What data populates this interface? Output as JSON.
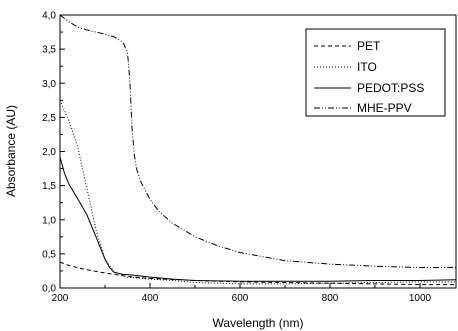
{
  "chart_data": {
    "type": "line",
    "title": "",
    "xlabel": "Wavelength (nm)",
    "ylabel": "Absorbance (AU)",
    "xlim": [
      200,
      1080
    ],
    "ylim": [
      0,
      4.0
    ],
    "xticks": [
      200,
      400,
      600,
      800,
      1000
    ],
    "xtick_labels": [
      "200",
      "400",
      "600",
      "800",
      "1000"
    ],
    "yticks": [
      0,
      0.5,
      1.0,
      1.5,
      2.0,
      2.5,
      3.0,
      3.5,
      4.0
    ],
    "ytick_labels": [
      "0,0",
      "0,5",
      "1,0",
      "1,5",
      "2,0",
      "2,5",
      "3,0",
      "3,5",
      "4,0"
    ],
    "grid": false,
    "legend_position": "top-right",
    "series": [
      {
        "name": "PET",
        "dash": "dashed",
        "x": [
          200,
          220,
          250,
          300,
          350,
          400,
          500,
          600,
          700,
          800,
          900,
          1000,
          1080
        ],
        "y": [
          0.38,
          0.33,
          0.28,
          0.22,
          0.17,
          0.14,
          0.11,
          0.09,
          0.08,
          0.07,
          0.06,
          0.05,
          0.05
        ]
      },
      {
        "name": "ITO",
        "dash": "dotted",
        "x": [
          200,
          220,
          240,
          260,
          280,
          300,
          320,
          350,
          400,
          450,
          500,
          600,
          700,
          800,
          900,
          1000,
          1080
        ],
        "y": [
          2.75,
          2.45,
          2.05,
          1.45,
          0.85,
          0.42,
          0.24,
          0.16,
          0.13,
          0.11,
          0.08,
          0.06,
          0.06,
          0.07,
          0.08,
          0.09,
          0.09
        ]
      },
      {
        "name": "PEDOT:PSS",
        "dash": "solid",
        "x": [
          200,
          210,
          220,
          240,
          260,
          280,
          300,
          310,
          320,
          340,
          360,
          400,
          450,
          500,
          600,
          700,
          800,
          900,
          1000,
          1080
        ],
        "y": [
          1.92,
          1.68,
          1.52,
          1.3,
          1.07,
          0.75,
          0.42,
          0.3,
          0.23,
          0.2,
          0.19,
          0.16,
          0.13,
          0.11,
          0.1,
          0.1,
          0.1,
          0.11,
          0.11,
          0.12
        ]
      },
      {
        "name": "MHE-PPV",
        "dash": "dashdotdot",
        "x": [
          200,
          220,
          240,
          260,
          280,
          300,
          320,
          340,
          350,
          355,
          360,
          365,
          370,
          380,
          400,
          420,
          450,
          500,
          550,
          600,
          650,
          700,
          800,
          900,
          1000,
          1080
        ],
        "y": [
          4.0,
          3.9,
          3.82,
          3.78,
          3.75,
          3.72,
          3.68,
          3.6,
          3.45,
          3.05,
          2.35,
          1.95,
          1.75,
          1.55,
          1.3,
          1.12,
          0.95,
          0.75,
          0.62,
          0.52,
          0.46,
          0.4,
          0.35,
          0.32,
          0.3,
          0.3
        ]
      }
    ]
  }
}
